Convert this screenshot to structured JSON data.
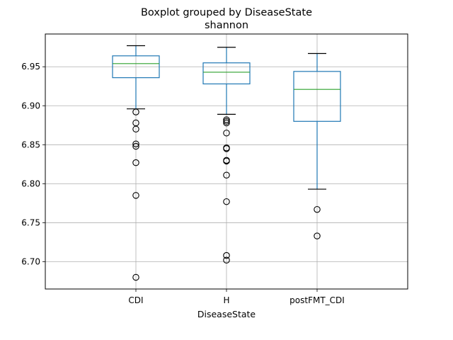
{
  "chart_data": {
    "type": "box",
    "title": "Boxplot grouped by DiseaseState",
    "subtitle": "shannon",
    "xlabel": "DiseaseState",
    "ylabel": "",
    "ylim": [
      6.665,
      6.992
    ],
    "yticks": [
      "6.70",
      "6.75",
      "6.80",
      "6.85",
      "6.90",
      "6.95"
    ],
    "grid": true,
    "categories": [
      "CDI",
      "H",
      "postFMT_CDI"
    ],
    "boxes": [
      {
        "category": "CDI",
        "whisker_low": 6.896,
        "q1": 6.936,
        "median": 6.954,
        "q3": 6.964,
        "whisker_high": 6.977,
        "outliers": [
          6.892,
          6.878,
          6.87,
          6.851,
          6.848,
          6.827,
          6.785,
          6.68
        ]
      },
      {
        "category": "H",
        "whisker_low": 6.889,
        "q1": 6.928,
        "median": 6.943,
        "q3": 6.955,
        "whisker_high": 6.975,
        "outliers": [
          6.882,
          6.88,
          6.878,
          6.865,
          6.846,
          6.845,
          6.83,
          6.829,
          6.811,
          6.777,
          6.708,
          6.702
        ]
      },
      {
        "category": "postFMT_CDI",
        "whisker_low": 6.793,
        "q1": 6.88,
        "median": 6.921,
        "q3": 6.944,
        "whisker_high": 6.967,
        "outliers": [
          6.767,
          6.733
        ]
      }
    ],
    "colors": {
      "box": "#1f77b4",
      "median": "#2ca02c",
      "whisker": "#1f77b4",
      "cap": "#000000",
      "outlier": "#000000",
      "grid": "#b0b0b0"
    }
  }
}
